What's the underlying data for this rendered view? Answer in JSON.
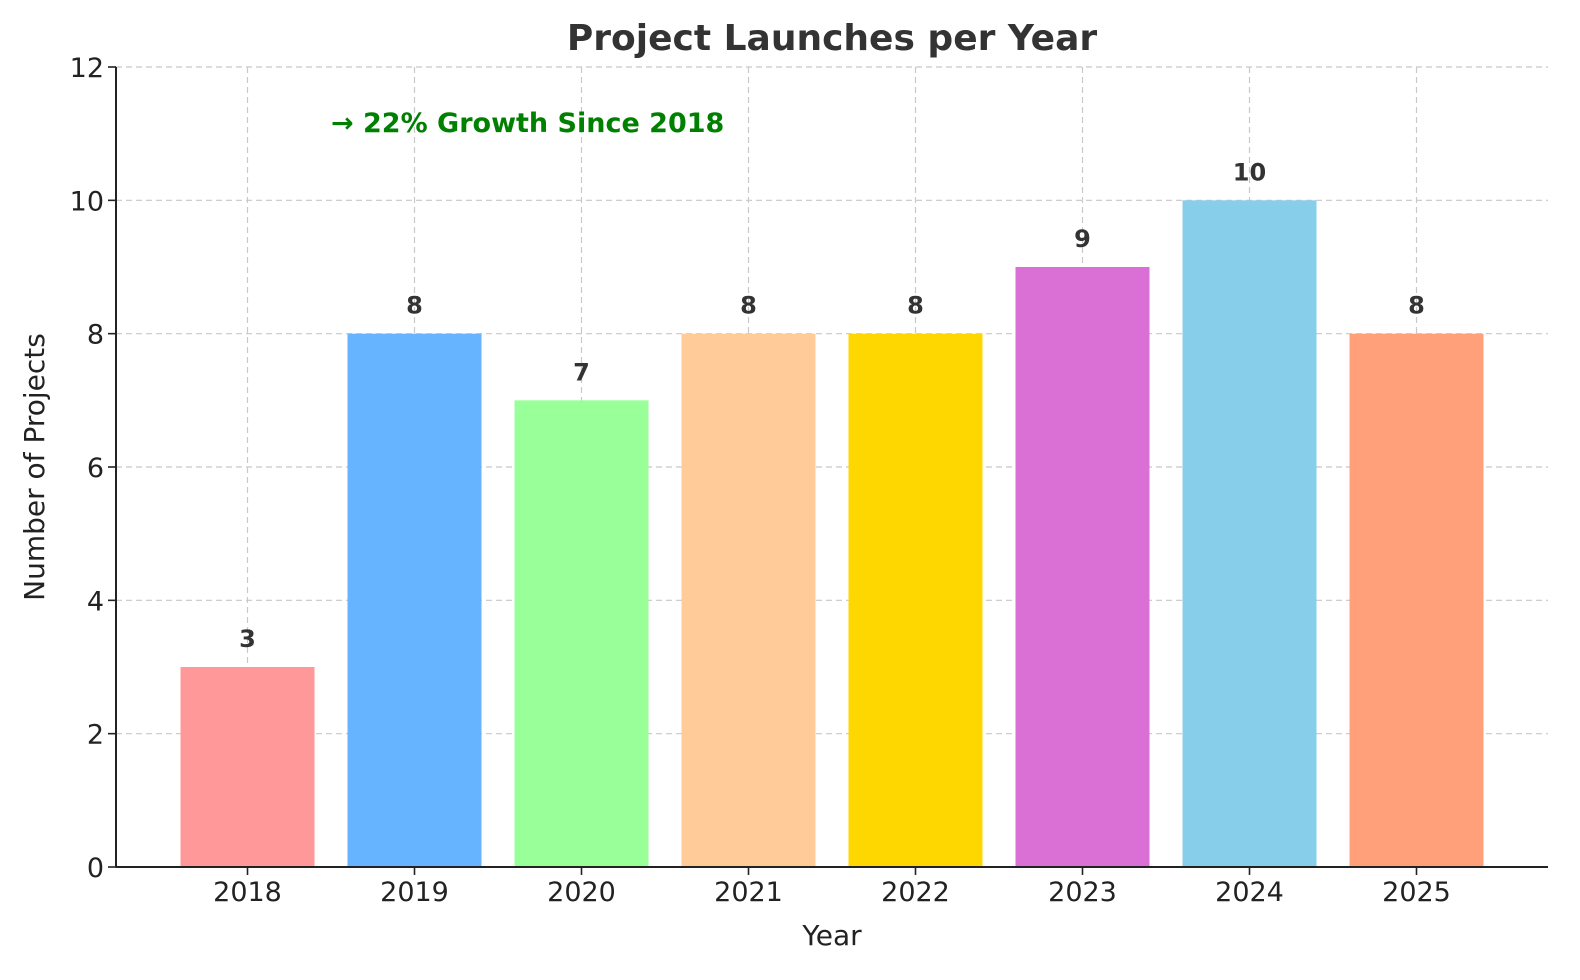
{
  "chart_data": {
    "type": "bar",
    "title": "Project Launches per Year",
    "xlabel": "Year",
    "ylabel": "Number of Projects",
    "categories": [
      "2018",
      "2019",
      "2020",
      "2021",
      "2022",
      "2023",
      "2024",
      "2025"
    ],
    "values": [
      3,
      8,
      7,
      8,
      8,
      9,
      10,
      8
    ],
    "colors": [
      "#ff9999",
      "#66b3ff",
      "#99ff99",
      "#ffcc99",
      "#ffd700",
      "#da70d6",
      "#87ceeb",
      "#ffa07a"
    ],
    "ylim": [
      0,
      12
    ],
    "yticks": [
      "0",
      "2",
      "4",
      "6",
      "8",
      "10",
      "12"
    ],
    "grid": true,
    "annotation": {
      "text": "→ 22% Growth Since 2018",
      "color": "#008000"
    }
  }
}
